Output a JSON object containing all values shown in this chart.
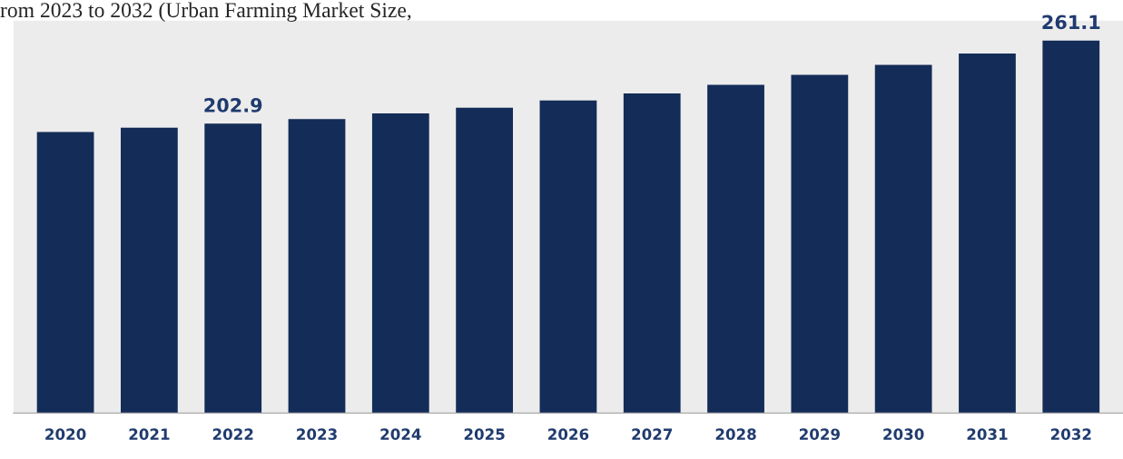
{
  "chart_data": {
    "type": "bar",
    "title": "rom 2023 to 2032 (Urban Farming Market Size,",
    "categories": [
      "2020",
      "2021",
      "2022",
      "2023",
      "2024",
      "2025",
      "2026",
      "2027",
      "2028",
      "2029",
      "2030",
      "2031",
      "2032"
    ],
    "values": [
      197,
      200,
      202.9,
      206,
      210,
      214,
      219,
      224,
      230,
      237,
      244,
      252,
      261.1
    ],
    "value_labels": [
      null,
      null,
      "202.9",
      null,
      null,
      null,
      null,
      null,
      null,
      null,
      null,
      null,
      "261.1"
    ],
    "color": "#142c58",
    "ylim": [
      0,
      275
    ],
    "grid": false,
    "legend": false
  }
}
